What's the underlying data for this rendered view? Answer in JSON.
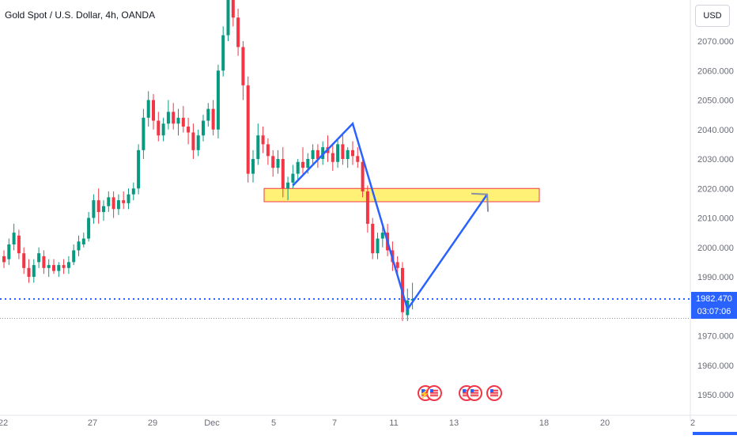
{
  "header": {
    "symbol_title": "Gold Spot / U.S. Dollar, 4h, OANDA",
    "currency_button": "USD"
  },
  "price_axis": {
    "ticks": [
      {
        "label": "2070.000",
        "value": 2070
      },
      {
        "label": "2060.000",
        "value": 2060
      },
      {
        "label": "2050.000",
        "value": 2050
      },
      {
        "label": "2040.000",
        "value": 2040
      },
      {
        "label": "2030.000",
        "value": 2030
      },
      {
        "label": "2020.000",
        "value": 2020
      },
      {
        "label": "2010.000",
        "value": 2010
      },
      {
        "label": "2000.000",
        "value": 2000
      },
      {
        "label": "1990.000",
        "value": 1990
      },
      {
        "label": "1970.000",
        "value": 1970
      },
      {
        "label": "1960.000",
        "value": 1960
      },
      {
        "label": "1950.000",
        "value": 1950
      }
    ],
    "current_price": "1982.470",
    "countdown": "03:07:06",
    "current_price_value": 1982.47,
    "previous_close_value": 1975.9
  },
  "time_axis": {
    "ticks": [
      "22",
      "27",
      "29",
      "Dec",
      "5",
      "7",
      "11",
      "13",
      "18",
      "20",
      "2"
    ]
  },
  "colors": {
    "up": "#089981",
    "down": "#f23645",
    "price_line": "#2962ff",
    "projection": "#2962ff",
    "zone_fill": "#fff176",
    "zone_border": "#f23645",
    "axis_text": "#6a6d78"
  },
  "chart_data": {
    "type": "candlestick",
    "title": "Gold Spot / U.S. Dollar, 4h, OANDA",
    "ylim": [
      1944,
      2080
    ],
    "candles": [
      [
        1997,
        1999,
        1993,
        1995
      ],
      [
        1996,
        2003,
        1994,
        2001
      ],
      [
        2001,
        2008,
        1999,
        2005
      ],
      [
        2004,
        2006,
        1996,
        1998
      ],
      [
        1998,
        2000,
        1991,
        1993
      ],
      [
        1993,
        1996,
        1988,
        1990
      ],
      [
        1990,
        1996,
        1988,
        1994
      ],
      [
        1995,
        2000,
        1993,
        1998
      ],
      [
        1997,
        1999,
        1991,
        1993
      ],
      [
        1993,
        1996,
        1990,
        1994
      ],
      [
        1994,
        1996,
        1991,
        1992
      ],
      [
        1992,
        1995,
        1990,
        1994
      ],
      [
        1994,
        1996,
        1991,
        1993
      ],
      [
        1993,
        1997,
        1991,
        1995
      ],
      [
        1995,
        2001,
        1994,
        1999
      ],
      [
        1999,
        2004,
        1997,
        2002
      ],
      [
        2001,
        2005,
        2000,
        2003
      ],
      [
        2003,
        2012,
        2002,
        2010
      ],
      [
        2010,
        2018,
        2008,
        2016
      ],
      [
        2016,
        2020,
        2008,
        2012
      ],
      [
        2012,
        2016,
        2009,
        2014
      ],
      [
        2014,
        2019,
        2012,
        2017
      ],
      [
        2017,
        2019,
        2010,
        2013
      ],
      [
        2013,
        2018,
        2011,
        2016
      ],
      [
        2016,
        2019,
        2013,
        2015
      ],
      [
        2015,
        2020,
        2013,
        2018
      ],
      [
        2018,
        2022,
        2016,
        2020
      ],
      [
        2020,
        2035,
        2018,
        2033
      ],
      [
        2033,
        2047,
        2030,
        2044
      ],
      [
        2044,
        2053,
        2041,
        2050
      ],
      [
        2050,
        2052,
        2040,
        2043
      ],
      [
        2043,
        2046,
        2036,
        2038
      ],
      [
        2038,
        2044,
        2036,
        2042
      ],
      [
        2042,
        2050,
        2040,
        2046
      ],
      [
        2046,
        2049,
        2040,
        2042
      ],
      [
        2042,
        2047,
        2038,
        2044
      ],
      [
        2044,
        2048,
        2039,
        2041
      ],
      [
        2041,
        2044,
        2035,
        2039
      ],
      [
        2039,
        2042,
        2030,
        2033
      ],
      [
        2033,
        2040,
        2031,
        2038
      ],
      [
        2038,
        2045,
        2036,
        2043
      ],
      [
        2043,
        2049,
        2041,
        2047
      ],
      [
        2047,
        2050,
        2038,
        2040
      ],
      [
        2040,
        2062,
        2037,
        2060
      ],
      [
        2060,
        2075,
        2058,
        2072
      ],
      [
        2072,
        2090,
        2070,
        2085
      ],
      [
        2085,
        2088,
        2075,
        2078
      ],
      [
        2078,
        2081,
        2065,
        2068
      ],
      [
        2068,
        2070,
        2050,
        2055
      ],
      [
        2055,
        2058,
        2022,
        2025
      ],
      [
        2025,
        2033,
        2022,
        2030
      ],
      [
        2030,
        2042,
        2028,
        2038
      ],
      [
        2038,
        2041,
        2032,
        2035
      ],
      [
        2035,
        2037,
        2028,
        2031
      ],
      [
        2031,
        2033,
        2024,
        2027
      ],
      [
        2027,
        2033,
        2025,
        2030
      ],
      [
        2030,
        2034,
        2017,
        2020
      ],
      [
        2020,
        2024,
        2016,
        2022
      ],
      [
        2022,
        2028,
        2020,
        2025
      ],
      [
        2025,
        2030,
        2023,
        2029
      ],
      [
        2029,
        2034,
        2025,
        2027
      ],
      [
        2027,
        2032,
        2025,
        2030
      ],
      [
        2030,
        2035,
        2028,
        2033
      ],
      [
        2033,
        2035,
        2027,
        2030
      ],
      [
        2030,
        2036,
        2028,
        2034
      ],
      [
        2034,
        2038,
        2029,
        2032
      ],
      [
        2032,
        2035,
        2026,
        2029
      ],
      [
        2029,
        2037,
        2027,
        2035
      ],
      [
        2035,
        2039,
        2028,
        2030
      ],
      [
        2030,
        2034,
        2027,
        2033
      ],
      [
        2033,
        2036,
        2028,
        2031
      ],
      [
        2031,
        2034,
        2027,
        2029
      ],
      [
        2029,
        2031,
        2017,
        2019
      ],
      [
        2019,
        2021,
        2005,
        2008
      ],
      [
        2008,
        2010,
        1996,
        1998
      ],
      [
        1998,
        2005,
        1996,
        2003
      ],
      [
        2003,
        2008,
        2000,
        2005
      ],
      [
        2005,
        2008,
        1997,
        1999
      ],
      [
        1999,
        2002,
        1992,
        1995
      ],
      [
        1995,
        1997,
        1990,
        1993
      ],
      [
        1993,
        1995,
        1975,
        1978
      ],
      [
        1977,
        1986,
        1975,
        1982
      ],
      [
        1982,
        1988,
        1979,
        1982.5
      ]
    ],
    "support_zone": {
      "from": 2015.5,
      "to": 2020,
      "label": ""
    },
    "projection_path": [
      {
        "bar": 58,
        "price": 2021
      },
      {
        "bar": 70,
        "price": 2042
      },
      {
        "bar": 81,
        "price": 1979
      },
      {
        "bar": 97,
        "price": 2018
      }
    ],
    "projection_arrow_tip": {
      "bar": 97,
      "price": 2018
    }
  }
}
